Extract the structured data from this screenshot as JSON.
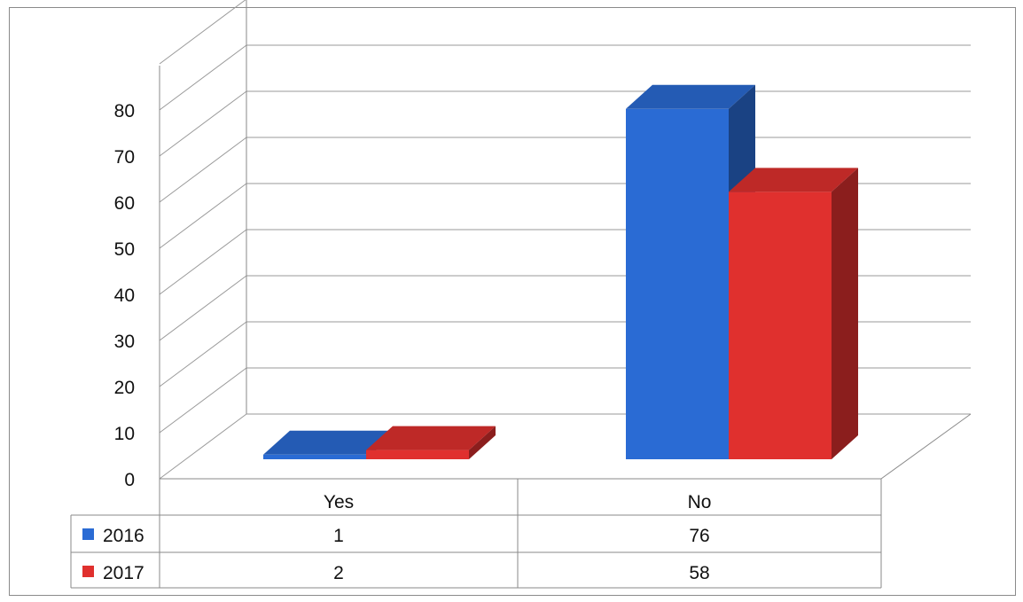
{
  "chart_data": {
    "type": "bar",
    "style": "3d-clustered-column-with-data-table",
    "categories": [
      "Yes",
      "No"
    ],
    "series": [
      {
        "name": "2016",
        "values": [
          1,
          76
        ],
        "color": "#2a6bd4"
      },
      {
        "name": "2017",
        "values": [
          2,
          58
        ],
        "color": "#e0302e"
      }
    ],
    "y_ticks": [
      "0",
      "10",
      "20",
      "30",
      "40",
      "50",
      "60",
      "70",
      "80"
    ],
    "ylim": [
      0,
      80
    ],
    "grid": true,
    "legend": "data-table-left",
    "table": {
      "header": [
        "Yes",
        "No"
      ],
      "rows": [
        {
          "label": "2016",
          "cells": [
            "1",
            "76"
          ]
        },
        {
          "label": "2017",
          "cells": [
            "2",
            "58"
          ]
        }
      ]
    }
  }
}
